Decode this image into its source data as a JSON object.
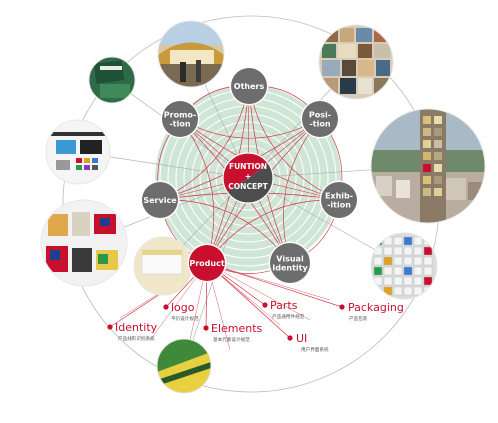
{
  "center": {
    "lines": [
      "FUNTION",
      "+",
      "CONCEPT"
    ]
  },
  "nodes": [
    {
      "id": "others",
      "lines": [
        "Others"
      ]
    },
    {
      "id": "position",
      "lines": [
        "Posi-",
        "-tion"
      ]
    },
    {
      "id": "exhibition",
      "lines": [
        "Exhib-",
        "-ition"
      ]
    },
    {
      "id": "visual",
      "lines": [
        "Visual",
        "Identity"
      ]
    },
    {
      "id": "product",
      "lines": [
        "Product"
      ]
    },
    {
      "id": "service",
      "lines": [
        "Service"
      ]
    },
    {
      "id": "promotion",
      "lines": [
        "Promo-",
        "-tion"
      ]
    }
  ],
  "subitems": [
    {
      "id": "logo",
      "label": "logo",
      "cn": "平衍设计规范"
    },
    {
      "id": "identity",
      "label": "Identity",
      "cn": "产品线形识别系统"
    },
    {
      "id": "elements",
      "label": "Elements",
      "cn": "基本元素设计规范"
    },
    {
      "id": "parts",
      "label": "Parts",
      "cn": "产品通用件规范"
    },
    {
      "id": "ui",
      "label": "UI",
      "cn": "用户界面系统"
    },
    {
      "id": "packaging",
      "label": "Packaging",
      "cn": "产品包装"
    }
  ],
  "photos": [
    {
      "id": "photo-stadium",
      "desc": "stadium"
    },
    {
      "id": "photo-booklet",
      "desc": "booklet"
    },
    {
      "id": "photo-webpage",
      "desc": "webpage"
    },
    {
      "id": "photo-bags",
      "desc": "bags"
    },
    {
      "id": "photo-box",
      "desc": "box"
    },
    {
      "id": "photo-mosaic",
      "desc": "mosaic"
    },
    {
      "id": "photo-city",
      "desc": "city"
    },
    {
      "id": "photo-panel",
      "desc": "panel"
    },
    {
      "id": "photo-green",
      "desc": "green"
    }
  ],
  "colors": {
    "accent": "#c8102e",
    "node": "#6d6d6d",
    "disc": "#cfe5d6",
    "outline": "#9a9a9a"
  }
}
